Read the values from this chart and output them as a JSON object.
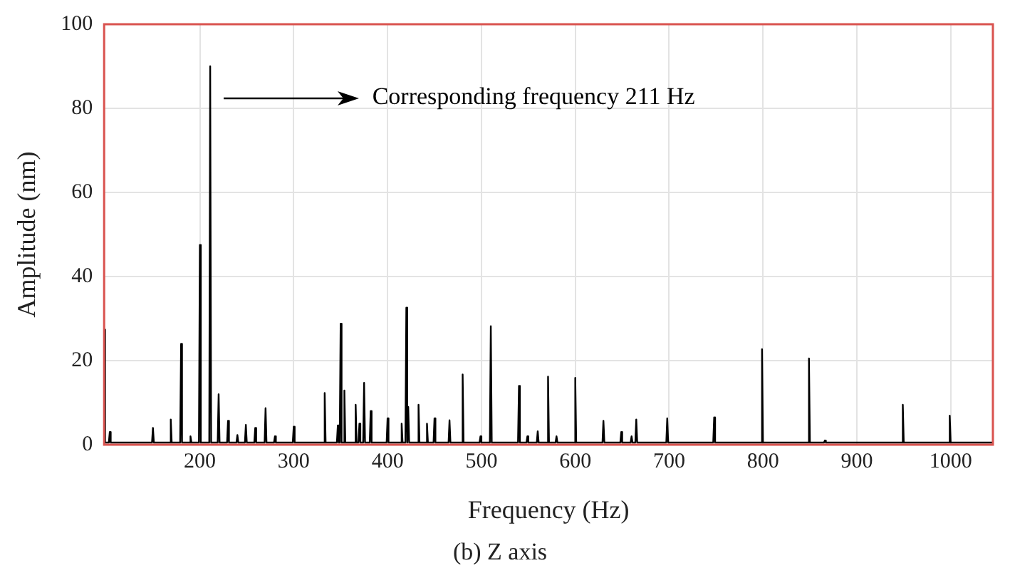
{
  "chart_data": {
    "type": "line",
    "xlabel": "Frequency (Hz)",
    "ylabel": "Amplitude (nm)",
    "annotations": [
      "Corresponding frequency 211 Hz",
      "(b) Z axis"
    ],
    "xlim": [
      98,
      1045
    ],
    "xticks": [
      200,
      300,
      400,
      500,
      600,
      700,
      800,
      900,
      1000
    ],
    "ylim": [
      0,
      100
    ],
    "yticks": [
      0,
      20,
      40,
      60,
      80,
      100
    ],
    "grid": true,
    "marker": "none",
    "line_style": "solid",
    "series": [
      {
        "color": "#000000",
        "x": [
          98,
          99,
          103,
          104,
          105,
          149,
          150,
          151,
          168,
          169,
          170,
          179,
          180,
          181,
          189,
          190,
          191,
          199,
          200,
          201,
          210,
          211,
          212,
          219,
          220,
          221,
          229,
          230,
          231,
          239,
          240,
          241,
          248,
          249,
          250,
          258,
          259,
          260,
          269,
          270,
          271,
          279,
          280,
          281,
          299,
          300,
          301,
          332,
          333,
          334,
          346,
          347,
          348,
          349,
          350,
          351,
          353,
          354,
          355,
          365,
          366,
          367,
          369,
          370,
          371,
          374,
          375,
          376,
          381,
          382,
          383,
          399,
          400,
          401,
          414,
          415,
          416,
          419,
          420,
          421,
          422,
          423,
          432,
          433,
          434,
          441,
          442,
          443,
          449,
          450,
          451,
          465,
          466,
          467,
          479,
          480,
          481,
          498,
          499,
          500,
          509,
          510,
          511,
          539,
          540,
          541,
          548,
          549,
          550,
          559,
          560,
          561,
          570,
          571,
          572,
          579,
          580,
          581,
          599,
          600,
          601,
          629,
          630,
          631,
          648,
          649,
          650,
          659,
          660,
          661,
          664,
          665,
          666,
          697,
          698,
          699,
          747,
          748,
          749,
          798,
          799,
          800,
          848,
          849,
          850,
          865,
          866,
          867,
          948,
          949,
          950,
          998,
          999,
          1000,
          1045
        ],
        "values": [
          27.4,
          0.5,
          0.5,
          3,
          0.5,
          0.5,
          4,
          0.5,
          0.5,
          6,
          0.5,
          0.5,
          24,
          0.5,
          0.5,
          2,
          0.5,
          0.5,
          47.5,
          0.5,
          0.5,
          90,
          0.5,
          0.5,
          12,
          0.5,
          0.5,
          5.7,
          0.5,
          0.5,
          2.3,
          0.5,
          0.5,
          4.7,
          0.5,
          0.5,
          4,
          0.5,
          0.5,
          8.7,
          0.5,
          0.5,
          2,
          0.5,
          0.5,
          4.3,
          0.5,
          0.5,
          12.3,
          0.5,
          0.5,
          4.6,
          0.5,
          0.5,
          28.8,
          0.5,
          0.5,
          12.9,
          0.5,
          0.5,
          9.5,
          0.5,
          0.5,
          5,
          0.5,
          0.5,
          14.7,
          0.5,
          0.5,
          8,
          0.5,
          0.5,
          6.3,
          0.5,
          0.5,
          5,
          0.5,
          0.5,
          32.6,
          0.5,
          9,
          0.5,
          0.5,
          9.5,
          0.5,
          0.5,
          5,
          0.5,
          0.5,
          6.3,
          0.5,
          0.5,
          5.8,
          0.5,
          0.5,
          16.7,
          0.5,
          0.5,
          2,
          0.5,
          0.5,
          28.2,
          0.5,
          0.5,
          14,
          0.5,
          0.5,
          2,
          0.5,
          0.5,
          3.2,
          0.5,
          0.5,
          16.2,
          0.5,
          0.5,
          2,
          0.5,
          0.5,
          15.9,
          0.5,
          0.5,
          5.7,
          0.5,
          0.5,
          3,
          0.5,
          0.5,
          2,
          0.5,
          0.5,
          6,
          0.5,
          0.5,
          6.3,
          0.5,
          0.5,
          6.5,
          0.5,
          0.5,
          22.7,
          0.5,
          0.5,
          20.5,
          0.5,
          0.5,
          1,
          0.5,
          0.5,
          9.5,
          0.5,
          0.5,
          6.9,
          0.5,
          0.5
        ]
      }
    ]
  }
}
